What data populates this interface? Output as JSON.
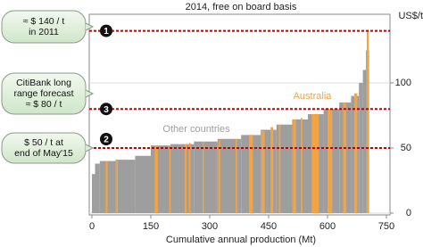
{
  "chart_data": {
    "type": "cost_curve",
    "title": "2014, free on board basis",
    "x_label": "Cumulative annual production (Mt)",
    "y_label": "US$/t",
    "xlim": [
      0,
      750
    ],
    "xticks": [
      0,
      150,
      300,
      450,
      600,
      750
    ],
    "ylim": [
      0,
      150
    ],
    "yticks": [
      0,
      50,
      100
    ],
    "grid": true,
    "series": [
      {
        "name": "Other countries",
        "color": "#9e9e9e",
        "x0": [
          0,
          8,
          20,
          60,
          110,
          150,
          200,
          260,
          320,
          380,
          430,
          470,
          510,
          550,
          590,
          630,
          660,
          680,
          690,
          698
        ],
        "x1": [
          8,
          20,
          60,
          110,
          150,
          200,
          260,
          320,
          380,
          430,
          470,
          510,
          550,
          590,
          630,
          660,
          680,
          690,
          698,
          706
        ],
        "values": [
          30,
          38,
          40,
          41,
          44,
          52,
          53,
          55,
          57,
          60,
          64,
          68,
          72,
          76,
          80,
          85,
          90,
          100,
          110,
          125
        ]
      },
      {
        "name": "Australia",
        "color": "#f4a340",
        "x0": [
          35,
          62,
          160,
          197,
          236,
          247,
          282,
          322,
          366,
          400,
          432,
          455,
          476,
          512,
          532,
          560,
          600,
          640,
          668,
          700
        ],
        "x1": [
          40,
          66,
          168,
          201,
          241,
          251,
          285,
          327,
          370,
          410,
          440,
          462,
          480,
          520,
          536,
          578,
          612,
          648,
          676,
          705
        ],
        "values": [
          40,
          41,
          52,
          52,
          53,
          54,
          55,
          56,
          57,
          60,
          63,
          66,
          68,
          72,
          73,
          76,
          80,
          85,
          92,
          140
        ]
      }
    ],
    "reference_lines": [
      {
        "value": 140,
        "marker": "1",
        "callout": [
          "≈ $ 140 / t",
          "in 2011"
        ]
      },
      {
        "value": 80,
        "marker": "3",
        "callout": [
          "CitiBank long",
          "range forecast",
          "≈ $ 80 / t"
        ]
      },
      {
        "value": 50,
        "marker": "2",
        "callout": [
          "$ 50 / t at",
          "end of May'15"
        ]
      }
    ]
  }
}
